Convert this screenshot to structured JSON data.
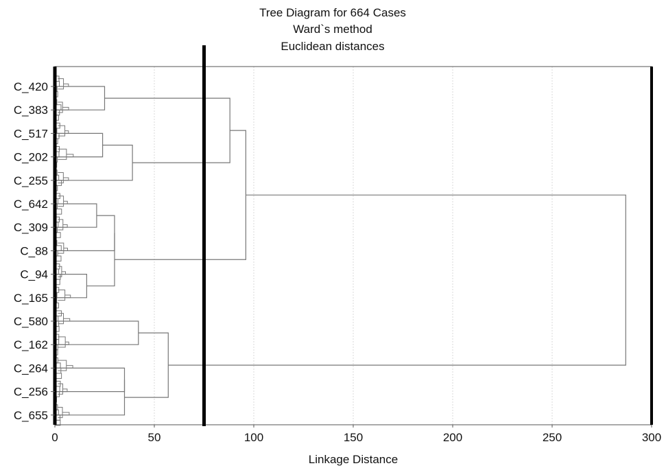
{
  "chart_data": {
    "type": "dendrogram",
    "title": [
      "Tree Diagram for 664 Cases",
      "Ward`s method",
      "Euclidean distances"
    ],
    "xlabel": "Linkage Distance",
    "xlim": [
      0,
      300
    ],
    "xticks": [
      0,
      50,
      100,
      150,
      200,
      250,
      300
    ],
    "grid": true,
    "cut_line": 75,
    "leaf_labels": [
      "C_420",
      "C_383",
      "C_517",
      "C_202",
      "C_255",
      "C_642",
      "C_309",
      "C_88",
      "C_94",
      "C_165",
      "C_580",
      "C_162",
      "C_264",
      "C_256",
      "C_655"
    ],
    "merges": [
      {
        "id": "A1",
        "children": [
          "C_420",
          "C_383"
        ],
        "height": 25
      },
      {
        "id": "A2",
        "children": [
          "C_517",
          "C_202"
        ],
        "height": 24
      },
      {
        "id": "A3",
        "children": [
          "A2",
          "C_255"
        ],
        "height": 39
      },
      {
        "id": "A4",
        "children": [
          "A1",
          "A3"
        ],
        "height": 88
      },
      {
        "id": "B1",
        "children": [
          "C_642",
          "C_309"
        ],
        "height": 21
      },
      {
        "id": "B2",
        "children": [
          "C_94",
          "C_165"
        ],
        "height": 16
      },
      {
        "id": "B3",
        "children": [
          "B1",
          "C_88"
        ],
        "height": 30
      },
      {
        "id": "B4",
        "children": [
          "B3",
          "B2"
        ],
        "height": 30
      },
      {
        "id": "AB",
        "children": [
          "A4",
          "B4"
        ],
        "height": 96
      },
      {
        "id": "C1",
        "children": [
          "C_580",
          "C_162"
        ],
        "height": 42
      },
      {
        "id": "C2",
        "children": [
          "C_264",
          "C_256"
        ],
        "height": 35
      },
      {
        "id": "C3",
        "children": [
          "C2",
          "C_655"
        ],
        "height": 35
      },
      {
        "id": "C4",
        "children": [
          "C1",
          "C3"
        ],
        "height": 57
      },
      {
        "id": "ROOT",
        "children": [
          "AB",
          "C4"
        ],
        "height": 287
      }
    ]
  }
}
